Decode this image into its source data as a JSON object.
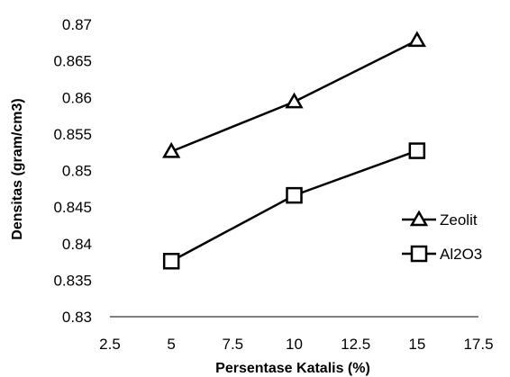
{
  "chart_data": {
    "type": "line",
    "title": "",
    "xlabel": "Persentase Katalis (%)",
    "ylabel": "Densitas (gram/cm3)",
    "x": [
      5,
      10,
      15
    ],
    "xlim": [
      2.5,
      17.5
    ],
    "ylim": [
      0.83,
      0.87
    ],
    "xticks": [
      2.5,
      5,
      7.5,
      10,
      12.5,
      15,
      17.5
    ],
    "yticks": [
      0.83,
      0.835,
      0.84,
      0.845,
      0.85,
      0.855,
      0.86,
      0.865,
      0.87
    ],
    "xtick_labels": [
      "2.5",
      "5",
      "7.5",
      "10",
      "12.5",
      "15",
      "17.5"
    ],
    "ytick_labels": [
      "0.83",
      "0.835",
      "0.84",
      "0.845",
      "0.85",
      "0.855",
      "0.86",
      "0.865",
      "0.87"
    ],
    "grid": false,
    "legend_position": "right",
    "series": [
      {
        "name": "Zeolit",
        "marker": "triangle",
        "color": "#000000",
        "values": [
          0.8526,
          0.8594,
          0.8678
        ]
      },
      {
        "name": "Al2O3",
        "marker": "square",
        "color": "#000000",
        "values": [
          0.8376,
          0.8466,
          0.8527
        ]
      }
    ]
  }
}
